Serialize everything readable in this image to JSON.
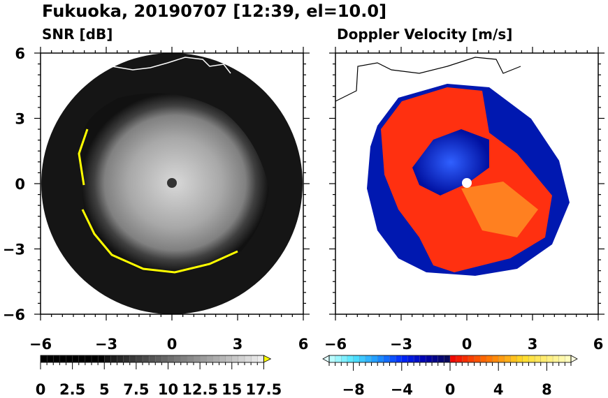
{
  "title": "Fukuoka, 20190707 [12:39, el=10.0]",
  "chart_data": [
    {
      "type": "heatmap",
      "title": "SNR [dB]",
      "xlim": [
        -6,
        6
      ],
      "ylim": [
        -6,
        6
      ],
      "xticks": [
        "−6",
        "−3",
        "0",
        "3",
        "6"
      ],
      "yticks": [
        "6",
        "3",
        "0",
        "−3",
        "−6"
      ],
      "colorbar": {
        "min": 0,
        "max": 17.5,
        "step": 0.5,
        "extend": "max",
        "ticks": [
          "0",
          "2.5",
          "5",
          "7.5",
          "10",
          "12.5",
          "15",
          "17.5"
        ],
        "over_color": "#ffff00"
      }
    },
    {
      "type": "heatmap",
      "title": "Doppler Velocity [m/s]",
      "xlim": [
        -6,
        6
      ],
      "ylim": [
        -6,
        6
      ],
      "xticks": [
        "−6",
        "−3",
        "0",
        "3",
        "6"
      ],
      "yticks": [
        "6",
        "3",
        "0",
        "−3",
        "−6"
      ],
      "colorbar": {
        "min": -10,
        "max": 10,
        "step": 0.5,
        "extend": "both",
        "ticks": [
          "−8",
          "−4",
          "0",
          "4",
          "8"
        ]
      }
    }
  ]
}
